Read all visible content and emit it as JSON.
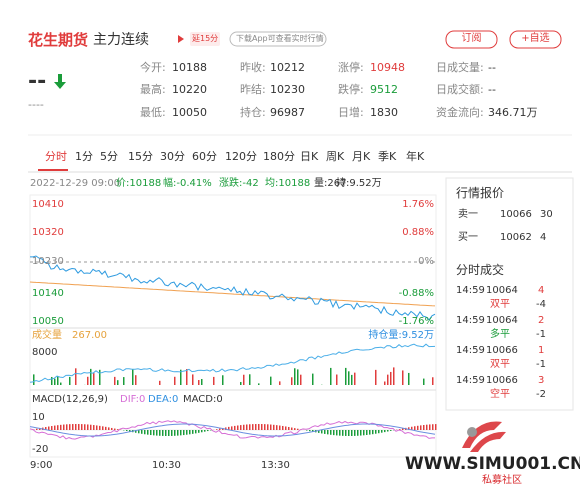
{
  "header": {
    "title": "花生期货",
    "subtitle": "主力连续",
    "badge": "延15分",
    "app_link": "下载App可查看实时行情",
    "buttons": [
      "订阅",
      "+自选"
    ]
  },
  "quote": {
    "price": "--",
    "change": "----"
  },
  "stats": [
    {
      "label": "今开:",
      "value": "10188"
    },
    {
      "label": "昨收:",
      "value": "10212"
    },
    {
      "label": "涨停:",
      "value": "10948"
    },
    {
      "label": "日成交量:",
      "value": "--"
    },
    {
      "label": "最高:",
      "value": "10220"
    },
    {
      "label": "昨结:",
      "value": "10230"
    },
    {
      "label": "跌停:",
      "value": "9512"
    },
    {
      "label": "日成交额:",
      "value": "--"
    },
    {
      "label": "最低:",
      "value": "10050"
    },
    {
      "label": "持仓:",
      "value": "96987"
    },
    {
      "label": "日增:",
      "value": "1830"
    },
    {
      "label": "资金流向:",
      "value": "346.71万"
    }
  ],
  "tabs": [
    "分时",
    "1分",
    "5分",
    "15分",
    "30分",
    "60分",
    "120分",
    "180分",
    "日K",
    "周K",
    "月K",
    "季K",
    "年K"
  ],
  "info": [
    "2022-12-29 09:00",
    "价:10188",
    "幅:-0.41%",
    "涨跌:-42",
    "均:10188",
    "量:267",
    "持:9.52万"
  ],
  "chart": {
    "y_left": [
      "10410",
      "10320",
      "10230",
      "10140",
      "10050"
    ],
    "y_right": [
      "1.76%",
      "0.88%",
      "0%",
      "-0.88%",
      "-1.76%"
    ],
    "volume_label": "成交量",
    "volume_value": "267.00",
    "oi_label": "持仓量:9.52万",
    "volume_tick": "8000",
    "macd_label": "MACD(12,26,9)",
    "dif": "DIF:0",
    "dea": "DEA:0",
    "macd": "MACD:0",
    "macd_ticks": [
      "10",
      "-20"
    ],
    "x_labels": [
      "9:00",
      "10:30",
      "13:30"
    ]
  },
  "side": {
    "quote_title": "行情报价",
    "book": [
      {
        "label": "卖一",
        "price": "10066",
        "qty": "30"
      },
      {
        "label": "买一",
        "price": "10062",
        "qty": "4"
      }
    ],
    "trades_title": "分时成交",
    "trades": [
      {
        "time": "14:59",
        "price": "10064",
        "qty": "4",
        "type": "双平",
        "change": "-4"
      },
      {
        "time": "14:59",
        "price": "10064",
        "qty": "2",
        "type": "多平",
        "change": "-1"
      },
      {
        "time": "14:59",
        "price": "10066",
        "qty": "1",
        "type": "双平",
        "change": "-1"
      },
      {
        "time": "14:59",
        "price": "10066",
        "qty": "3",
        "type": "空平",
        "change": "-2"
      }
    ]
  },
  "watermark": {
    "site": "WWW.SIMU001.CN",
    "name": "私募社区"
  }
}
